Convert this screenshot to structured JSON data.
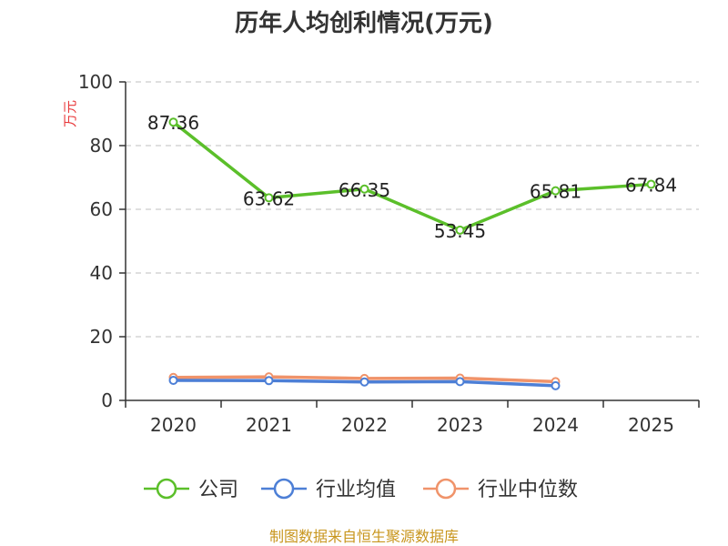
{
  "chart_data": {
    "type": "line",
    "title": "历年人均创利情况(万元)",
    "ylabel": "万元",
    "xlabel": "",
    "categories": [
      "2020",
      "2021",
      "2022",
      "2023",
      "2024",
      "2025"
    ],
    "ylim": [
      0,
      100
    ],
    "yticks": [
      "0",
      "20",
      "40",
      "60",
      "80",
      "100"
    ],
    "grid": true,
    "legend_position": "bottom",
    "series": [
      {
        "name": "公司",
        "values": [
          87.36,
          63.62,
          66.35,
          53.45,
          65.81,
          67.84
        ],
        "labels": [
          "87.36",
          "63.62",
          "66.35",
          "53.45",
          "65.81",
          "67.84"
        ],
        "color": "#5bbf2a"
      },
      {
        "name": "行业均值",
        "values": [
          6.3,
          6.2,
          5.8,
          5.9,
          4.6,
          null
        ],
        "color": "#4d7fd6"
      },
      {
        "name": "行业中位数",
        "values": [
          7.2,
          7.4,
          6.9,
          7.0,
          5.9,
          null
        ],
        "color": "#f0936a"
      }
    ]
  },
  "footer": {
    "source": "制图数据来自恒生聚源数据库",
    "source_color": "#c8961e"
  },
  "colors": {
    "ylabel": "#e8393b",
    "axis": "#333333",
    "grid": "#cccccc"
  }
}
